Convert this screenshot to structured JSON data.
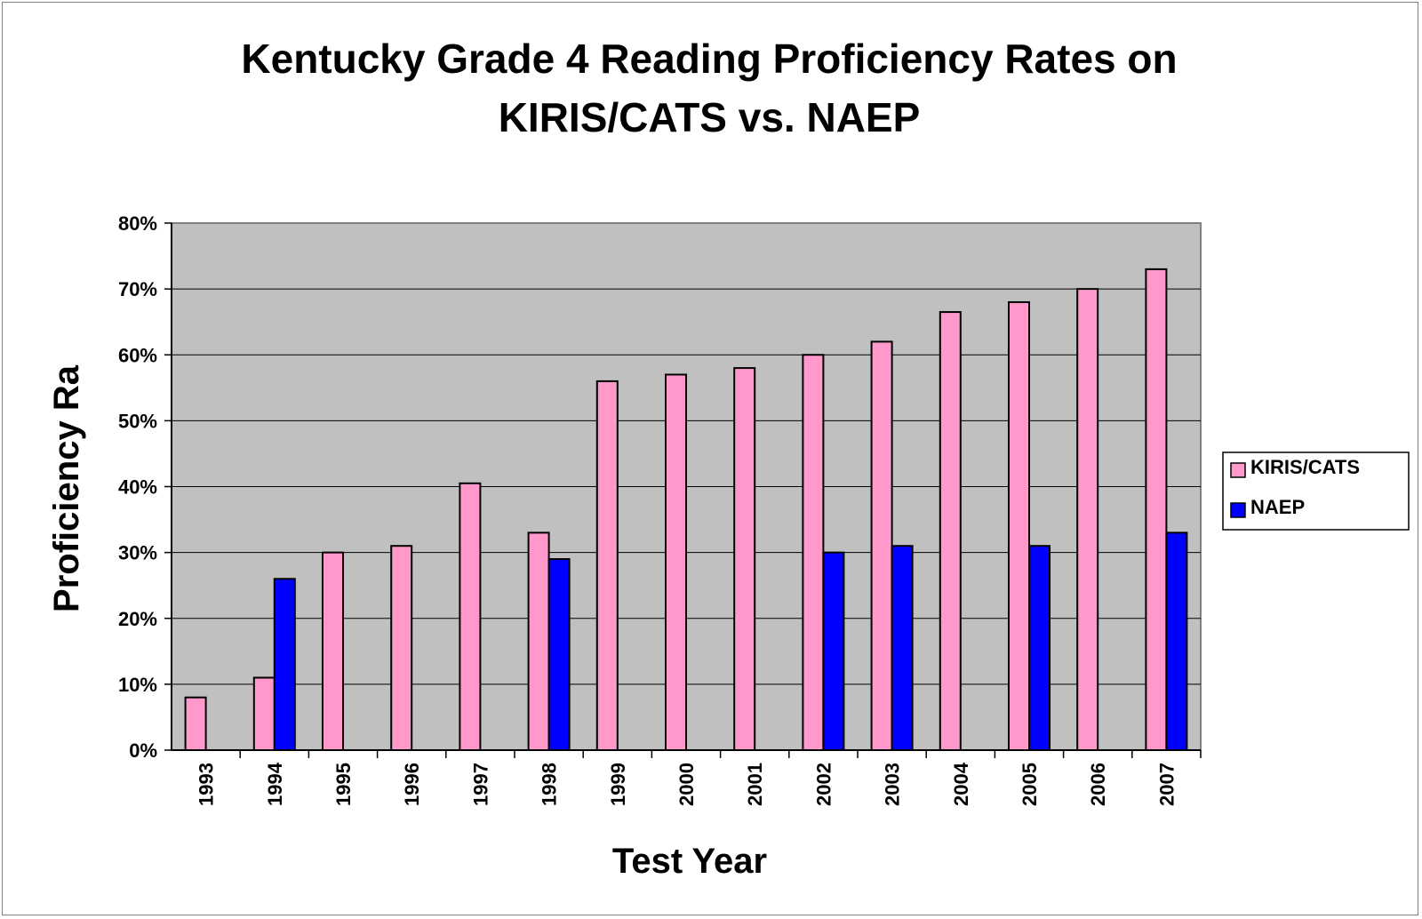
{
  "chart_data": {
    "type": "bar",
    "title_lines": [
      "Kentucky Grade 4 Reading Proficiency Rates on",
      "KIRIS/CATS vs. NAEP"
    ],
    "xlabel": "Test Year",
    "ylabel": "Proficiency Ra",
    "ylim": [
      0,
      80
    ],
    "yticks": [
      "0%",
      "10%",
      "20%",
      "30%",
      "40%",
      "50%",
      "60%",
      "70%",
      "80%"
    ],
    "grid": true,
    "legend_position": "right",
    "categories": [
      "1993",
      "1994",
      "1995",
      "1996",
      "1997",
      "1998",
      "1999",
      "2000",
      "2001",
      "2002",
      "2003",
      "2004",
      "2005",
      "2006",
      "2007"
    ],
    "series": [
      {
        "name": "KIRIS/CATS",
        "color": "#ff99cc",
        "values": [
          8,
          11,
          30,
          31,
          40.5,
          33,
          56,
          57,
          58,
          60,
          62,
          66.5,
          68,
          70,
          73
        ]
      },
      {
        "name": "NAEP",
        "color": "#0000ff",
        "values": [
          null,
          26,
          null,
          null,
          null,
          29,
          null,
          null,
          null,
          30,
          31,
          null,
          31,
          null,
          33
        ]
      }
    ],
    "plot_background": "#c0c0c0"
  }
}
